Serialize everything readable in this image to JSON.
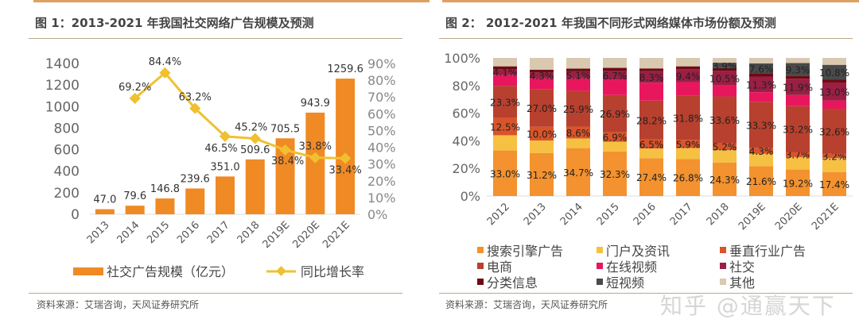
{
  "left": {
    "title": "图 1：2013-2021 年我国社交网络广告规模及预测",
    "source": "资料来源：艾瑞咨询，天风证券研究所"
  },
  "right": {
    "title": "图 2：  2012-2021 年我国不同形式网络媒体市场份额及预测",
    "source": "资料来源：艾瑞咨询，天风证券研究所"
  },
  "watermark": "知乎 @通赢天下",
  "chart_data": [
    {
      "type": "bar+line",
      "categories": [
        "2013",
        "2014",
        "2015",
        "2016",
        "2017",
        "2018",
        "2019E",
        "2020E",
        "2021E"
      ],
      "series": [
        {
          "name": "社交广告规模（亿元）",
          "type": "bar",
          "axis": "left",
          "color": "#f08a24",
          "values": [
            47.0,
            79.6,
            146.8,
            239.6,
            351.0,
            509.6,
            705.5,
            943.9,
            1259.6
          ],
          "labels": [
            "47.0",
            "79.6",
            "146.8",
            "239.6",
            "351.0",
            "509.6",
            "705.5",
            "943.9",
            "1259.6"
          ]
        },
        {
          "name": "同比增长率",
          "type": "line",
          "axis": "right",
          "color": "#f0c030",
          "values": [
            null,
            69.2,
            84.4,
            63.2,
            46.5,
            45.2,
            38.4,
            33.8,
            33.4
          ],
          "labels": [
            "",
            "69.2%",
            "84.4%",
            "63.2%",
            "46.5%",
            "45.2%",
            "38.4%",
            "33.8%",
            "33.4%"
          ]
        }
      ],
      "ylim": [
        0,
        1400
      ],
      "yticks": [
        "0",
        "200",
        "400",
        "600",
        "800",
        "1000",
        "1200",
        "1400"
      ],
      "y2lim": [
        0,
        90
      ],
      "y2ticks": [
        "0%",
        "10%",
        "20%",
        "30%",
        "40%",
        "50%",
        "60%",
        "70%",
        "80%",
        "90%"
      ],
      "legend": "bottom",
      "grid": false
    },
    {
      "type": "stacked-bar",
      "categories": [
        "2012",
        "2013",
        "2014",
        "2015",
        "2016",
        "2017",
        "2018",
        "2019E",
        "2020E",
        "2021E"
      ],
      "ylim": [
        0,
        100
      ],
      "yticks": [
        "0%",
        "20%",
        "40%",
        "60%",
        "80%",
        "100%"
      ],
      "series": [
        {
          "name": "搜索引擎广告",
          "color": "#f3922e",
          "values": [
            33.0,
            31.2,
            34.7,
            32.3,
            27.4,
            26.8,
            24.3,
            21.6,
            19.2,
            17.4
          ],
          "labeled": true
        },
        {
          "name": "门户及资讯",
          "color": "#f6c042",
          "values": [
            11,
            9,
            7,
            7,
            7,
            8,
            9,
            9,
            9,
            10
          ],
          "labeled": false
        },
        {
          "name": "垂直行业广告",
          "color": "#d9542a",
          "values": [
            12.5,
            10.0,
            8.6,
            6.9,
            6.5,
            5.9,
            5.2,
            4.3,
            3.7,
            3.2
          ],
          "labeled": true
        },
        {
          "name": "电商",
          "color": "#b8402e",
          "values": [
            23.3,
            27.0,
            25.9,
            26.9,
            28.2,
            31.8,
            33.6,
            33.3,
            33.2,
            32.6
          ],
          "labeled": true
        },
        {
          "name": "在线视频",
          "color": "#e8175d",
          "values": [
            8,
            8,
            9,
            11,
            13,
            10,
            8,
            7,
            8,
            6
          ],
          "labeled": false
        },
        {
          "name": "社交",
          "color": "#9b1f45",
          "values": [
            4.1,
            4.3,
            5.1,
            6.7,
            8.3,
            9.4,
            10.5,
            11.3,
            11.9,
            13.0
          ],
          "labeled": true
        },
        {
          "name": "分类信息",
          "color": "#6e0a12",
          "values": [
            2,
            2,
            2,
            2,
            2,
            2,
            2,
            2,
            2,
            2
          ],
          "labeled": false
        },
        {
          "name": "短视频",
          "color": "#4a4a4a",
          "values": [
            0,
            0,
            0,
            0,
            0,
            0,
            3.9,
            7.6,
            9.3,
            10.8
          ],
          "labeled": true
        },
        {
          "name": "其他",
          "color": "#d9c9b0",
          "values": [
            6.1,
            8.5,
            7.7,
            7.2,
            7.6,
            6.1,
            3.5,
            3.9,
            3.7,
            5.0
          ],
          "labeled": false
        }
      ],
      "legend": "bottom",
      "grid": false
    }
  ]
}
